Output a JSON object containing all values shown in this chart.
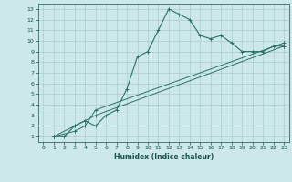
{
  "xlabel": "Humidex (Indice chaleur)",
  "bg_color": "#cce8e8",
  "grid_color": "#aacccc",
  "line_color": "#2a7068",
  "text_color": "#1a5050",
  "xlim": [
    -0.5,
    23.5
  ],
  "ylim": [
    0.5,
    13.5
  ],
  "xticks": [
    0,
    1,
    2,
    3,
    4,
    5,
    6,
    7,
    8,
    9,
    10,
    11,
    12,
    13,
    14,
    15,
    16,
    17,
    18,
    19,
    20,
    21,
    22,
    23
  ],
  "yticks": [
    1,
    2,
    3,
    4,
    5,
    6,
    7,
    8,
    9,
    10,
    11,
    12,
    13
  ],
  "line1_x": [
    1,
    2,
    3,
    4,
    5,
    6,
    7,
    8,
    9,
    10,
    11,
    12,
    13,
    14,
    15,
    16,
    17,
    18,
    19,
    20,
    21,
    22,
    23
  ],
  "line1_y": [
    1,
    1,
    2,
    2.5,
    2,
    3,
    3.5,
    5.5,
    8.5,
    9,
    11,
    13,
    12.5,
    12,
    10.5,
    10.2,
    10.5,
    9.8,
    9,
    9,
    9,
    9.5,
    9.5
  ],
  "line2_x": [
    1,
    3,
    4,
    5,
    23
  ],
  "line2_y": [
    1,
    2,
    2.5,
    3,
    9.5
  ],
  "line3_x": [
    1,
    3,
    4,
    5,
    23
  ],
  "line3_y": [
    1,
    1.5,
    2,
    3.5,
    9.8
  ]
}
